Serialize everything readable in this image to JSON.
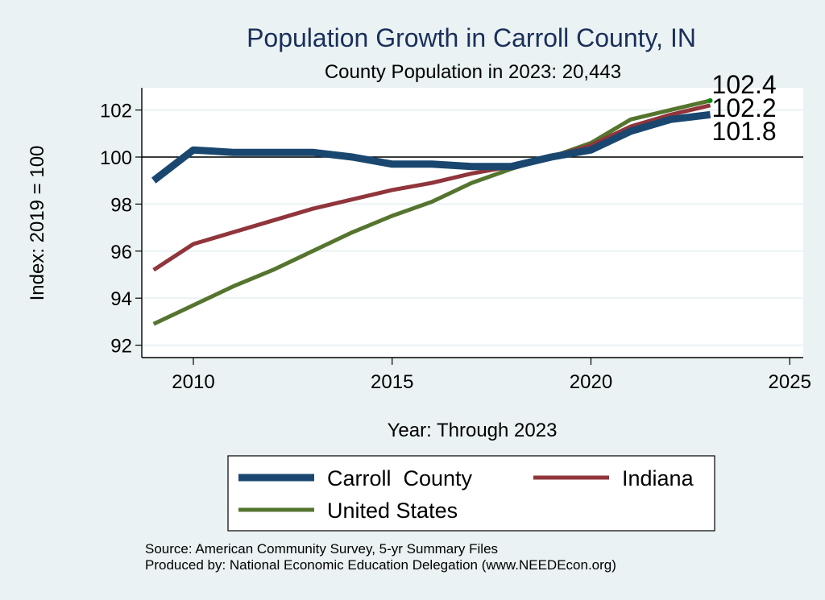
{
  "chart_data": {
    "type": "line",
    "title": "Population Growth in Carroll County, IN",
    "subtitle": "County Population in 2023: 20,443",
    "xlabel": "Year: Through 2023",
    "ylabel": "Index: 2019 = 100",
    "xlim": [
      2008.8,
      2025.4
    ],
    "ylim": [
      91.5,
      102.9
    ],
    "xticks": [
      2010,
      2015,
      2020,
      2025
    ],
    "yticks": [
      92,
      94,
      96,
      98,
      100,
      102
    ],
    "reference_line": 100,
    "grid": true,
    "legend_position": "bottom",
    "x": [
      2009,
      2010,
      2011,
      2012,
      2013,
      2014,
      2015,
      2016,
      2017,
      2018,
      2019,
      2020,
      2021,
      2022,
      2023
    ],
    "series": [
      {
        "name": "Carroll  County",
        "color": "#1a476f",
        "width": 9,
        "values": [
          99.0,
          100.3,
          100.2,
          100.2,
          100.2,
          100.0,
          99.7,
          99.7,
          99.6,
          99.6,
          100.0,
          100.3,
          101.1,
          101.6,
          101.8
        ]
      },
      {
        "name": "Indiana",
        "color": "#90353b",
        "width": 5,
        "values": [
          95.2,
          96.3,
          96.8,
          97.3,
          97.8,
          98.2,
          98.6,
          98.9,
          99.3,
          99.6,
          100.0,
          100.5,
          101.3,
          101.8,
          102.2
        ]
      },
      {
        "name": "United States",
        "color": "#55752f",
        "width": 5,
        "values": [
          92.9,
          93.7,
          94.5,
          95.2,
          96.0,
          96.8,
          97.5,
          98.1,
          98.9,
          99.5,
          100.0,
          100.6,
          101.6,
          102.0,
          102.4
        ]
      }
    ],
    "end_labels": [
      "102.4",
      "102.2",
      "101.8"
    ],
    "notes": [
      "Source: American Community Survey, 5-yr Summary Files",
      "Produced by: National Economic Education Delegation (www.NEEDEcon.org)"
    ]
  }
}
